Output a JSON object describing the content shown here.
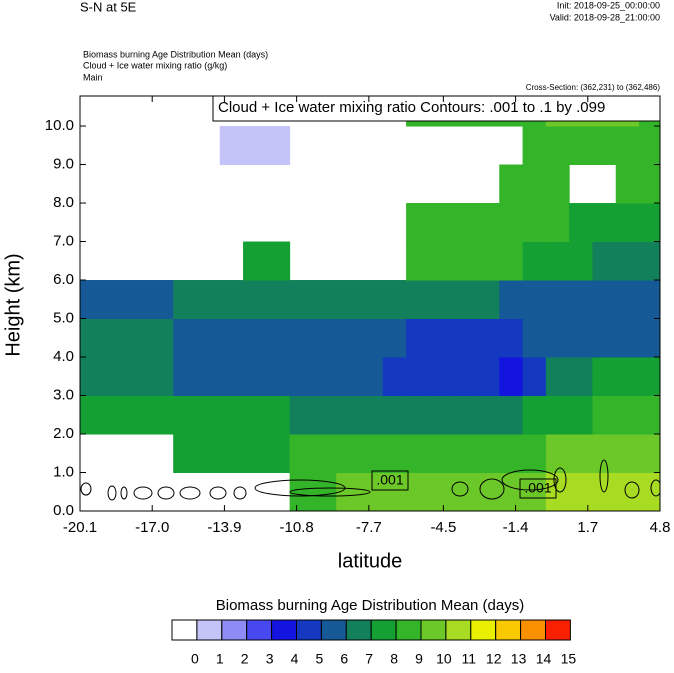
{
  "chart_data": {
    "type": "contour",
    "title": "S-N at 5E",
    "init": "Init: 2018-09-25_00:00:00",
    "valid": "Valid: 2018-09-28_21:00:00",
    "subtitles": [
      "Biomass burning Age Distribution Mean   (days)",
      "Cloud + Ice water mixing ratio   (g/kg)",
      "Main"
    ],
    "cross_section": "Cross-Section: (362,231) to (362,486)",
    "contour_title": "Cloud + Ice water mixing ratio Contours: .001 to .1 by .099",
    "contour_labels": [
      ".001",
      ".001"
    ],
    "xlabel": "latitude",
    "ylabel": "Height (km)",
    "xlim": [
      -20.1,
      4.8
    ],
    "ylim": [
      0,
      10.78
    ],
    "xticks": [
      -20.1,
      {
        "value": -17,
        "label": "-17.0"
      },
      -13.9,
      -10.8,
      -7.7,
      -4.5,
      -1.4,
      1.7,
      4.8
    ],
    "yticks": [
      {
        "value": 0,
        "label": "0.0"
      },
      {
        "value": 1,
        "label": "1.0"
      },
      {
        "value": 2,
        "label": "2.0"
      },
      {
        "value": 3,
        "label": "3.0"
      },
      {
        "value": 4,
        "label": "4.0"
      },
      {
        "value": 5,
        "label": "5.0"
      },
      {
        "value": 6,
        "label": "6.0"
      },
      {
        "value": 7,
        "label": "7.0"
      },
      {
        "value": 8,
        "label": "8.0"
      },
      {
        "value": 9,
        "label": "9.0"
      },
      {
        "value": 10,
        "label": "10.0"
      }
    ],
    "x": [
      -19.6,
      -18.6,
      -17.6,
      -16.6,
      -15.6,
      -14.6,
      -13.6,
      -12.6,
      -11.6,
      -10.6,
      -9.6,
      -8.6,
      -7.6,
      -6.6,
      -5.6,
      -4.6,
      -3.6,
      -2.6,
      -1.6,
      -0.6,
      0.4,
      1.4,
      2.4,
      3.4,
      4.4
    ],
    "y": [
      0.5,
      1.5,
      2.5,
      3.5,
      4.5,
      5.5,
      6.5,
      7.5,
      8.5,
      9.5,
      10.5
    ],
    "z": [
      [
        null,
        null,
        null,
        null,
        null,
        null,
        null,
        null,
        null,
        8.5,
        8.5,
        9.5,
        9.5,
        9.5,
        9.5,
        9.5,
        9.5,
        9.5,
        9.5,
        9.5,
        10.5,
        10.5,
        10.5,
        10.5,
        10.5
      ],
      [
        null,
        null,
        null,
        null,
        7.5,
        7.5,
        7.5,
        7.5,
        7.5,
        8.5,
        8.5,
        8.5,
        8.5,
        8.5,
        8.5,
        8.5,
        8.5,
        8.5,
        8.5,
        8.5,
        9.5,
        9.5,
        9.5,
        9.5,
        9.5
      ],
      [
        7.5,
        7.5,
        7.5,
        7.5,
        7.5,
        7.5,
        7.5,
        7.5,
        7.5,
        6.5,
        6.5,
        6.5,
        6.5,
        6.5,
        6.5,
        6.5,
        6.5,
        6.5,
        6.5,
        7.5,
        7.5,
        7.5,
        8.5,
        8.5,
        8.5
      ],
      [
        6.5,
        6.5,
        6.5,
        6.5,
        5.5,
        5.5,
        5.5,
        5.5,
        5.5,
        5.5,
        5.5,
        5.5,
        5.5,
        4.5,
        4.5,
        4.5,
        4.5,
        4.5,
        3.5,
        4.5,
        6.5,
        6.5,
        7.5,
        7.5,
        7.5
      ],
      [
        6.5,
        6.5,
        6.5,
        6.5,
        5.5,
        5.5,
        5.5,
        5.5,
        5.5,
        5.5,
        5.5,
        5.5,
        5.5,
        5.5,
        4.5,
        4.5,
        4.5,
        4.5,
        4.5,
        5.5,
        5.5,
        5.5,
        5.5,
        5.5,
        5.5
      ],
      [
        5.5,
        5.5,
        5.5,
        5.5,
        6.5,
        6.5,
        6.5,
        6.5,
        6.5,
        6.5,
        6.5,
        6.5,
        6.5,
        6.5,
        6.5,
        6.5,
        6.5,
        6.5,
        5.5,
        5.5,
        5.5,
        5.5,
        5.5,
        5.5,
        5.5
      ],
      [
        null,
        null,
        null,
        null,
        null,
        null,
        null,
        7.5,
        7.5,
        null,
        null,
        null,
        null,
        null,
        8.5,
        8.5,
        8.5,
        8.5,
        8.5,
        7.5,
        7.5,
        7.5,
        6.5,
        6.5,
        6.5
      ],
      [
        null,
        null,
        null,
        null,
        null,
        null,
        null,
        null,
        null,
        null,
        null,
        null,
        null,
        null,
        8.5,
        8.5,
        8.5,
        8.5,
        8.5,
        8.5,
        8.5,
        7.5,
        7.5,
        7.5,
        7.5
      ],
      [
        null,
        null,
        null,
        null,
        null,
        null,
        null,
        null,
        null,
        null,
        null,
        null,
        null,
        null,
        null,
        null,
        null,
        null,
        8.5,
        8.5,
        8.5,
        null,
        null,
        8.5,
        8.5
      ],
      [
        null,
        null,
        null,
        null,
        null,
        null,
        0.5,
        0.5,
        0.5,
        null,
        null,
        null,
        null,
        null,
        null,
        null,
        null,
        null,
        null,
        8.5,
        8.5,
        8.5,
        8.5,
        8.5,
        8.5
      ],
      [
        null,
        null,
        null,
        null,
        null,
        null,
        null,
        null,
        null,
        null,
        null,
        null,
        null,
        null,
        8.5,
        8.5,
        8.5,
        8.5,
        8.5,
        8.5,
        9.5,
        9.5,
        9.5,
        9.5,
        8.5
      ]
    ],
    "colorbar": {
      "title": "Biomass burning Age Distribution Mean  (days)",
      "levels": [
        0,
        1,
        2,
        3,
        4,
        5,
        6,
        7,
        8,
        9,
        10,
        11,
        12,
        13,
        14,
        15
      ],
      "colors": [
        "#ffffff",
        "#c4c4f8",
        "#8c8cf4",
        "#4848f0",
        "#1414e0",
        "#1438c0",
        "#155a96",
        "#12805a",
        "#14a032",
        "#34b428",
        "#6cc828",
        "#a8dc22",
        "#e8f000",
        "#f8c800",
        "#f89000",
        "#f82000"
      ]
    }
  }
}
